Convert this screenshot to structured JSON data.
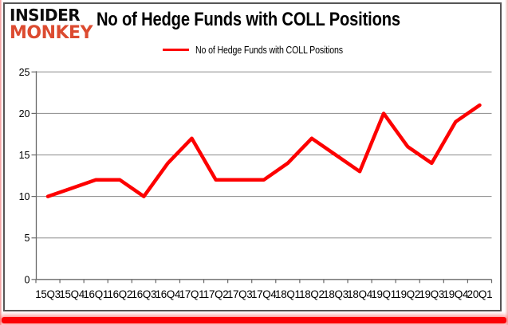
{
  "brand": {
    "line1": "INSIDER",
    "line2": "MONKEY"
  },
  "header": {
    "title": "No of Hedge Funds with COLL Positions"
  },
  "legend": {
    "label": "No of Hedge Funds with COLL Positions"
  },
  "colors": {
    "background": "#ffffff",
    "line_red": "#fd0000",
    "logo_black": "#0b0b0b",
    "logo_red": "#dc4b30",
    "gridline_gray": "#8a8a8a",
    "axis_gray": "#686868",
    "frame_gray": "#565656",
    "bottom_bar_red": "#fb0106",
    "text_black": "#000000"
  },
  "chart_data": {
    "type": "line",
    "title": "No of Hedge Funds with COLL Positions",
    "series": [
      {
        "name": "No of Hedge Funds with COLL Positions",
        "values": [
          10,
          11,
          12,
          12,
          10,
          14,
          17,
          12,
          12,
          12,
          14,
          17,
          15,
          13,
          20,
          16,
          14,
          19,
          21
        ]
      }
    ],
    "categories": [
      "15Q3",
      "15Q4",
      "16Q1",
      "16Q2",
      "16Q3",
      "16Q4",
      "17Q1",
      "17Q2",
      "17Q3",
      "17Q4",
      "18Q1",
      "18Q2",
      "18Q3",
      "18Q4",
      "19Q1",
      "19Q2",
      "19Q3",
      "19Q4",
      "20Q1"
    ],
    "xlabel": "",
    "ylabel": "",
    "ylim": [
      0,
      25
    ],
    "yticks": [
      0,
      5,
      10,
      15,
      20,
      25
    ],
    "grid": true,
    "legend_position": "top-center"
  }
}
